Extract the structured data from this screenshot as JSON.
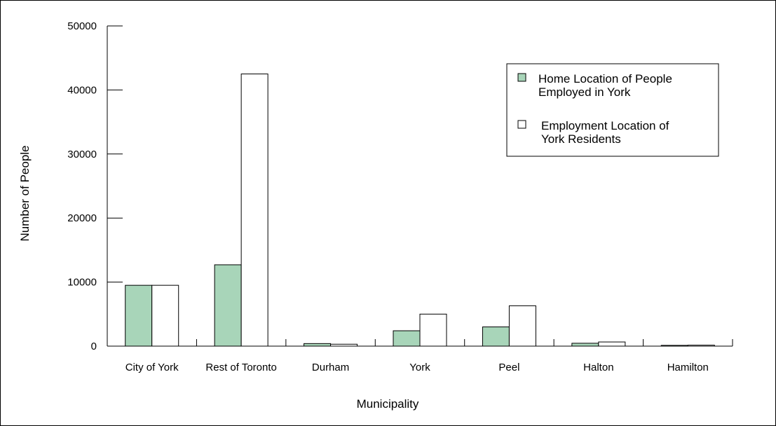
{
  "chart_data": {
    "type": "bar",
    "title": "",
    "xlabel": "Municipality",
    "ylabel": "Number of People",
    "ylim": [
      0,
      50000
    ],
    "yticks": [
      0,
      10000,
      20000,
      30000,
      40000,
      50000
    ],
    "grid": false,
    "legend_position": "top-right",
    "categories": [
      "City of York",
      "Rest of Toronto",
      "Durham",
      "York",
      "Peel",
      "Halton",
      "Hamilton"
    ],
    "series": [
      {
        "name": "Home Location of People Employed in York",
        "legend_lines": [
          "Home Location of People",
          "Employed in York"
        ],
        "color": "#a8d5b9",
        "values": [
          9500,
          12700,
          400,
          2400,
          3000,
          450,
          120
        ]
      },
      {
        "name": "Employment Location of York Residents",
        "legend_lines": [
          "Employment Location of",
          "York Residents"
        ],
        "color": "#ffffff",
        "values": [
          9500,
          42500,
          300,
          5000,
          6300,
          650,
          150
        ]
      }
    ]
  }
}
